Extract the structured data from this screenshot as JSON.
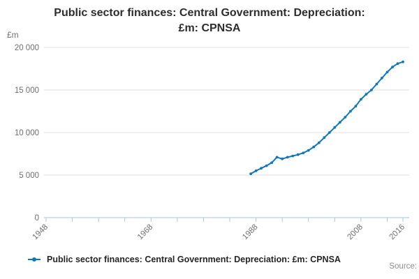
{
  "title_line1": "Public sector finances: Central Government: Depreciation:",
  "title_line2": "£m: CPNSA",
  "legend": {
    "label": "Public sector finances: Central Government: Depreciation: £m: CPNSA",
    "marker": "line-with-dot-icon"
  },
  "source_label": "Source:",
  "colors": {
    "line": "#1077bd",
    "grid": "#e1e1e1",
    "axis": "#a9c6df",
    "tick_text": "#6f6f6f",
    "title_text": "#2d2d2d"
  },
  "chart_data": {
    "type": "line",
    "title": "Public sector finances: Central Government: Depreciation: £m: CPNSA",
    "unit_label": "£m",
    "xlabel": "",
    "ylabel": "£m",
    "xlim": [
      1948,
      2016
    ],
    "ylim": [
      0,
      20000
    ],
    "grid": "horizontal",
    "legend_position": "bottom",
    "x_tick_interval": 5,
    "x_labeled_ticks": [
      1948,
      1968,
      1988,
      2008,
      2016
    ],
    "yticks": [
      0,
      5000,
      10000,
      15000,
      20000
    ],
    "ytick_labels": [
      "0",
      "5 000",
      "10 000",
      "15 000",
      "20 000"
    ],
    "series": [
      {
        "name": "Public sector finances: Central Government: Depreciation: £m: CPNSA",
        "x": [
          1987,
          1988,
          1989,
          1990,
          1991,
          1992,
          1993,
          1994,
          1995,
          1996,
          1997,
          1998,
          1999,
          2000,
          2001,
          2002,
          2003,
          2004,
          2005,
          2006,
          2007,
          2008,
          2009,
          2010,
          2011,
          2012,
          2013,
          2014,
          2015,
          2016
        ],
        "values": [
          5150,
          5500,
          5800,
          6100,
          6450,
          7100,
          6900,
          7100,
          7250,
          7400,
          7600,
          7900,
          8300,
          8800,
          9400,
          10000,
          10600,
          11200,
          11800,
          12500,
          13100,
          13900,
          14500,
          15000,
          15700,
          16400,
          17100,
          17700,
          18100,
          18300
        ]
      }
    ]
  }
}
